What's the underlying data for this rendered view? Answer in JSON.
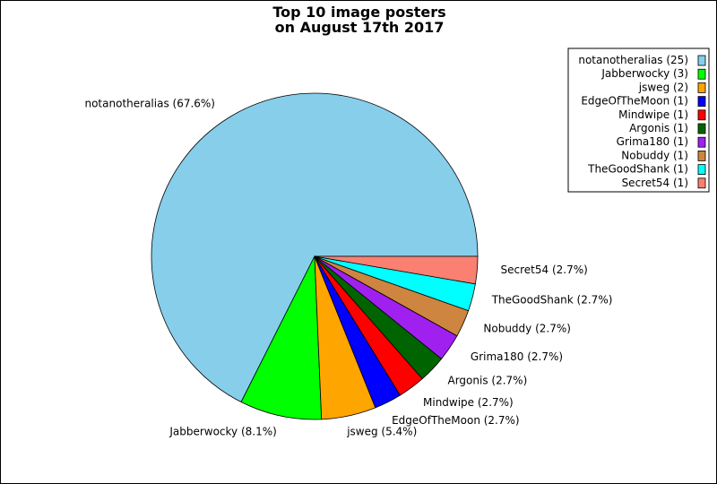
{
  "chart_data": {
    "type": "pie",
    "title_lines": [
      "Top 10 image posters",
      "on August 17th 2017"
    ],
    "legend_position": "top-right",
    "slices": [
      {
        "name": "notanotheralias",
        "count": 25,
        "percent": 67.6,
        "legend_label": "notanotheralias (25)",
        "pie_label": "notanotheralias (67.6%)",
        "color": "#87ceeb"
      },
      {
        "name": "Jabberwocky",
        "count": 3,
        "percent": 8.1,
        "legend_label": "Jabberwocky (3)",
        "pie_label": "Jabberwocky (8.1%)",
        "color": "#00ff00"
      },
      {
        "name": "jsweg",
        "count": 2,
        "percent": 5.4,
        "legend_label": "jsweg (2)",
        "pie_label": "jsweg (5.4%)",
        "color": "#ffa500"
      },
      {
        "name": "EdgeOfTheMoon",
        "count": 1,
        "percent": 2.7,
        "legend_label": "EdgeOfTheMoon (1)",
        "pie_label": "EdgeOfTheMoon (2.7%)",
        "color": "#0000ff"
      },
      {
        "name": "Mindwipe",
        "count": 1,
        "percent": 2.7,
        "legend_label": "Mindwipe (1)",
        "pie_label": "Mindwipe (2.7%)",
        "color": "#ff0000"
      },
      {
        "name": "Argonis",
        "count": 1,
        "percent": 2.7,
        "legend_label": "Argonis (1)",
        "pie_label": "Argonis (2.7%)",
        "color": "#006400"
      },
      {
        "name": "Grima180",
        "count": 1,
        "percent": 2.7,
        "legend_label": "Grima180 (1)",
        "pie_label": "Grima180 (2.7%)",
        "color": "#a020f0"
      },
      {
        "name": "Nobuddy",
        "count": 1,
        "percent": 2.7,
        "legend_label": "Nobuddy (1)",
        "pie_label": "Nobuddy (2.7%)",
        "color": "#cd853f"
      },
      {
        "name": "TheGoodShank",
        "count": 1,
        "percent": 2.7,
        "legend_label": "TheGoodShank (1)",
        "pie_label": "TheGoodShank (2.7%)",
        "color": "#00ffff"
      },
      {
        "name": "Secret54",
        "count": 1,
        "percent": 2.7,
        "legend_label": "Secret54 (1)",
        "pie_label": "Secret54 (2.7%)",
        "color": "#fa8072"
      }
    ]
  }
}
